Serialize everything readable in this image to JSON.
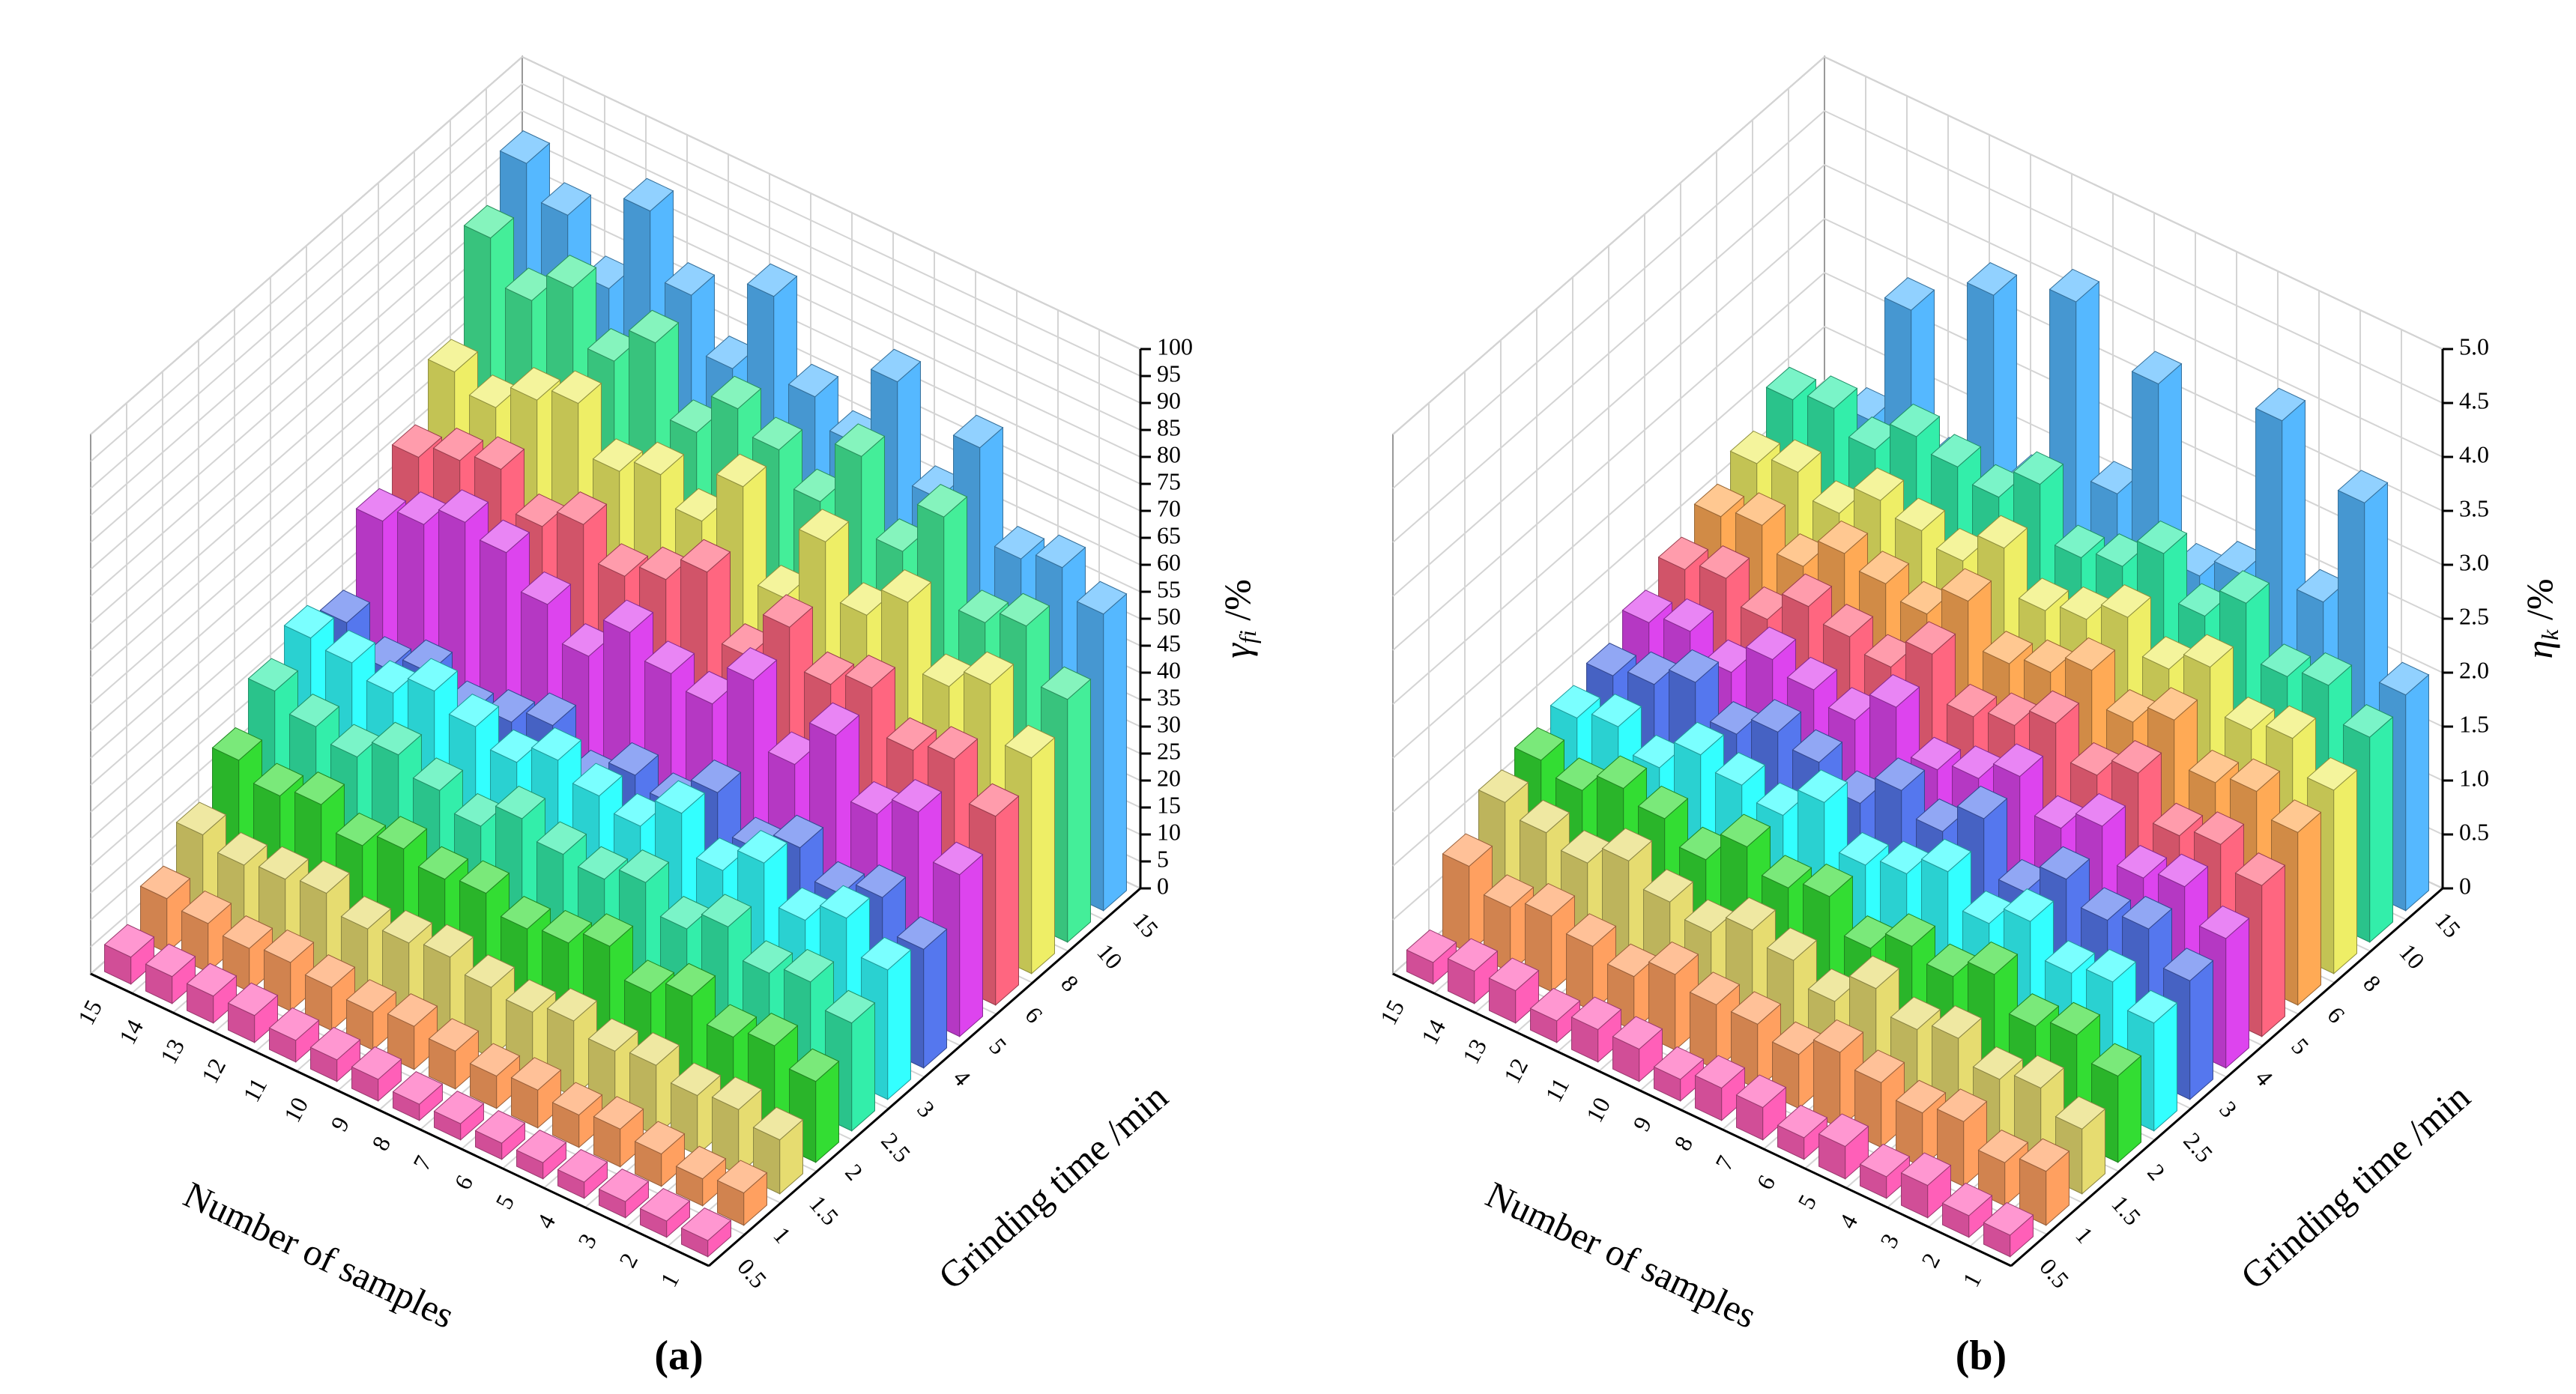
{
  "chart_data": [
    {
      "type": "bar3d",
      "caption": "(a)",
      "xlabel": "Number of samples",
      "ylabel": "Grinding time /min",
      "zlabel": {
        "symbol": "γ",
        "subscript": "fi",
        "unit": " /%"
      },
      "categories": [
        "1",
        "2",
        "3",
        "4",
        "5",
        "6",
        "7",
        "8",
        "9",
        "10",
        "11",
        "12",
        "13",
        "14",
        "15"
      ],
      "zlim": [
        0,
        100
      ],
      "zticks": [
        0,
        5,
        10,
        15,
        20,
        25,
        30,
        35,
        40,
        45,
        50,
        55,
        60,
        65,
        70,
        75,
        80,
        85,
        90,
        95,
        100
      ],
      "grid": true,
      "series": [
        {
          "name": "0.5",
          "color": "#ff5fb8",
          "values": [
            3,
            3,
            3,
            3,
            3,
            3,
            3,
            3,
            4,
            4,
            4,
            5,
            5,
            5,
            5
          ]
        },
        {
          "name": "1",
          "color": "#ffa060",
          "values": [
            6,
            5,
            6,
            7,
            6,
            7,
            6,
            7,
            8,
            7,
            8,
            9,
            8,
            9,
            10
          ]
        },
        {
          "name": "1.5",
          "color": "#e6dc70",
          "values": [
            10,
            12,
            11,
            13,
            12,
            14,
            12,
            13,
            15,
            14,
            13,
            16,
            15,
            14,
            16
          ]
        },
        {
          "name": "2",
          "color": "#33dd33",
          "values": [
            15,
            18,
            16,
            20,
            17,
            22,
            19,
            18,
            21,
            20,
            22,
            19,
            23,
            21,
            24
          ]
        },
        {
          "name": "2.5",
          "color": "#33eeaa",
          "values": [
            20,
            24,
            22,
            27,
            23,
            28,
            25,
            26,
            29,
            24,
            27,
            30,
            26,
            28,
            31
          ]
        },
        {
          "name": "3",
          "color": "#33ffff",
          "values": [
            24,
            30,
            26,
            33,
            28,
            35,
            29,
            31,
            34,
            30,
            33,
            36,
            32,
            34,
            35
          ]
        },
        {
          "name": "4",
          "color": "#5577ee",
          "values": [
            22,
            28,
            25,
            30,
            26,
            33,
            27,
            29,
            24,
            31,
            28,
            26,
            30,
            27,
            32
          ]
        },
        {
          "name": "5",
          "color": "#dd44ee",
          "values": [
            30,
            38,
            34,
            45,
            36,
            48,
            40,
            42,
            46,
            38,
            44,
            50,
            52,
            48,
            45
          ]
        },
        {
          "name": "6",
          "color": "#ff6680",
          "values": [
            35,
            42,
            40,
            48,
            45,
            52,
            43,
            55,
            50,
            47,
            53,
            49,
            56,
            54,
            51
          ]
        },
        {
          "name": "8",
          "color": "#eeee66",
          "values": [
            40,
            50,
            46,
            58,
            52,
            62,
            48,
            65,
            55,
            60,
            57,
            66,
            63,
            58,
            61
          ]
        },
        {
          "name": "10",
          "color": "#44ee99",
          "values": [
            45,
            55,
            52,
            68,
            58,
            72,
            60,
            66,
            70,
            62,
            75,
            68,
            78,
            72,
            80
          ]
        },
        {
          "name": "15",
          "color": "#55b8ff",
          "values": [
            55,
            60,
            58,
            75,
            62,
            80,
            65,
            70,
            85,
            68,
            78,
            90,
            72,
            82,
            88
          ]
        }
      ]
    },
    {
      "type": "bar3d",
      "caption": "(b)",
      "xlabel": "Number of samples",
      "ylabel": "Grinding time /min",
      "zlabel": {
        "symbol": "η",
        "subscript": "k",
        "unit": " /%"
      },
      "categories": [
        "1",
        "2",
        "3",
        "4",
        "5",
        "6",
        "7",
        "8",
        "9",
        "10",
        "11",
        "12",
        "13",
        "14",
        "15"
      ],
      "zlim": [
        0,
        5
      ],
      "zticks": [
        0,
        0.5,
        {
          "value": 1,
          "label": "1.0"
        },
        1.5,
        {
          "value": 2,
          "label": "2.0"
        },
        2.5,
        {
          "value": 3,
          "label": "3.0"
        },
        3.5,
        {
          "value": 4,
          "label": "4.0"
        },
        4.5,
        {
          "value": 5,
          "label": "5.0"
        }
      ],
      "grid": true,
      "series": [
        {
          "name": "0.5",
          "color": "#ff5fb8",
          "values": [
            0.2,
            0.2,
            0.3,
            0.2,
            0.3,
            0.2,
            0.3,
            0.3,
            0.2,
            0.3,
            0.3,
            0.2,
            0.3,
            0.3,
            0.2
          ]
        },
        {
          "name": "1",
          "color": "#ffa060",
          "values": [
            0.5,
            0.4,
            0.6,
            0.5,
            0.6,
            0.7,
            0.5,
            0.6,
            0.6,
            0.7,
            0.5,
            0.6,
            0.7,
            0.6,
            0.8
          ]
        },
        {
          "name": "1.5",
          "color": "#e6dc70",
          "values": [
            0.6,
            0.8,
            0.7,
            0.9,
            0.8,
            1.0,
            0.7,
            0.9,
            1.0,
            0.8,
            0.9,
            1.1,
            0.9,
            1.0,
            1.1
          ]
        },
        {
          "name": "2",
          "color": "#33dd33",
          "values": [
            0.8,
            1.0,
            0.9,
            1.2,
            1.0,
            1.1,
            0.9,
            1.2,
            1.1,
            1.3,
            1.0,
            1.2,
            1.3,
            1.1,
            1.2
          ]
        },
        {
          "name": "2.5",
          "color": "#33ffff",
          "values": [
            1.0,
            1.2,
            1.1,
            1.4,
            1.2,
            1.5,
            1.3,
            1.2,
            1.6,
            1.3,
            1.4,
            1.5,
            1.2,
            1.4,
            1.3
          ]
        },
        {
          "name": "3",
          "color": "#5577ee",
          "values": [
            1.1,
            1.4,
            1.3,
            1.5,
            1.2,
            1.7,
            1.4,
            1.6,
            1.3,
            1.5,
            1.6,
            1.4,
            1.7,
            1.5,
            1.4
          ]
        },
        {
          "name": "4",
          "color": "#dd44ee",
          "values": [
            1.2,
            1.5,
            1.4,
            1.7,
            1.5,
            1.8,
            1.6,
            1.5,
            1.9,
            1.6,
            1.7,
            1.8,
            1.5,
            1.7,
            1.6
          ]
        },
        {
          "name": "5",
          "color": "#ff6680",
          "values": [
            1.4,
            1.6,
            1.5,
            1.9,
            1.7,
            2.0,
            1.8,
            1.7,
            2.1,
            1.8,
            1.9,
            2.0,
            1.7,
            1.9,
            1.8
          ]
        },
        {
          "name": "6",
          "color": "#ffaa55",
          "values": [
            1.6,
            1.8,
            1.7,
            2.1,
            1.9,
            2.2,
            2.0,
            1.9,
            2.3,
            2.0,
            2.1,
            2.2,
            1.9,
            2.1,
            2.0
          ]
        },
        {
          "name": "8",
          "color": "#eeee66",
          "values": [
            1.7,
            2.0,
            1.9,
            2.3,
            2.1,
            2.4,
            2.2,
            2.1,
            2.5,
            2.2,
            2.3,
            2.4,
            2.1,
            2.3,
            2.2
          ]
        },
        {
          "name": "10",
          "color": "#33eeaa",
          "values": [
            1.9,
            2.2,
            2.1,
            2.6,
            2.3,
            2.7,
            2.4,
            2.3,
            2.8,
            2.5,
            2.6,
            2.7,
            2.4,
            2.6,
            2.5
          ]
        },
        {
          "name": "15",
          "color": "#55b8ff",
          "values": [
            2.0,
            3.6,
            2.5,
            4.0,
            2.4,
            2.2,
            3.8,
            2.6,
            4.2,
            2.3,
            3.9,
            2.1,
            3.4,
            2.2,
            2.0
          ]
        }
      ]
    }
  ]
}
